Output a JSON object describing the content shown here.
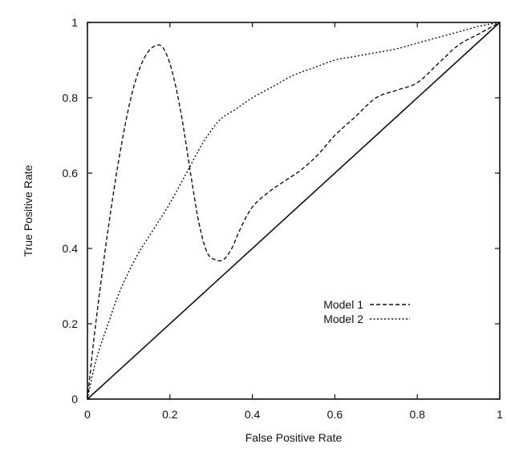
{
  "chart_data": {
    "type": "line",
    "xlabel": "False Positive Rate",
    "ylabel": "True Positive Rate",
    "xlim": [
      0,
      1
    ],
    "ylim": [
      0,
      1
    ],
    "xticks": [
      "0",
      "0.2",
      "0.4",
      "0.6",
      "0.8",
      "1"
    ],
    "yticks": [
      "0",
      "0.2",
      "0.4",
      "0.6",
      "0.8",
      "1"
    ],
    "grid": false,
    "legend_position": "lower-right",
    "series": [
      {
        "name": "",
        "style": "solid",
        "color": "#111111",
        "x": [
          0,
          1
        ],
        "y": [
          0,
          1
        ]
      },
      {
        "name": "Model 1",
        "style": "dashed",
        "color": "#111111",
        "x": [
          0,
          0.02,
          0.05,
          0.08,
          0.11,
          0.14,
          0.17,
          0.19,
          0.21,
          0.23,
          0.25,
          0.27,
          0.29,
          0.31,
          0.33,
          0.35,
          0.37,
          0.4,
          0.44,
          0.48,
          0.52,
          0.56,
          0.6,
          0.65,
          0.7,
          0.75,
          0.8,
          0.85,
          0.9,
          0.95,
          1.0
        ],
        "y": [
          0,
          0.2,
          0.45,
          0.66,
          0.82,
          0.91,
          0.94,
          0.92,
          0.85,
          0.74,
          0.6,
          0.47,
          0.39,
          0.37,
          0.37,
          0.4,
          0.45,
          0.51,
          0.55,
          0.58,
          0.61,
          0.65,
          0.7,
          0.75,
          0.8,
          0.82,
          0.84,
          0.89,
          0.94,
          0.97,
          1.0
        ]
      },
      {
        "name": "Model 2",
        "style": "dotted",
        "color": "#111111",
        "x": [
          0,
          0.02,
          0.05,
          0.08,
          0.12,
          0.16,
          0.2,
          0.24,
          0.28,
          0.32,
          0.36,
          0.4,
          0.45,
          0.5,
          0.55,
          0.6,
          0.65,
          0.7,
          0.75,
          0.8,
          0.85,
          0.9,
          0.95,
          1.0
        ],
        "y": [
          0,
          0.1,
          0.2,
          0.29,
          0.38,
          0.45,
          0.52,
          0.6,
          0.68,
          0.74,
          0.77,
          0.8,
          0.83,
          0.86,
          0.88,
          0.9,
          0.91,
          0.92,
          0.93,
          0.945,
          0.96,
          0.975,
          0.99,
          1.0
        ]
      }
    ]
  }
}
